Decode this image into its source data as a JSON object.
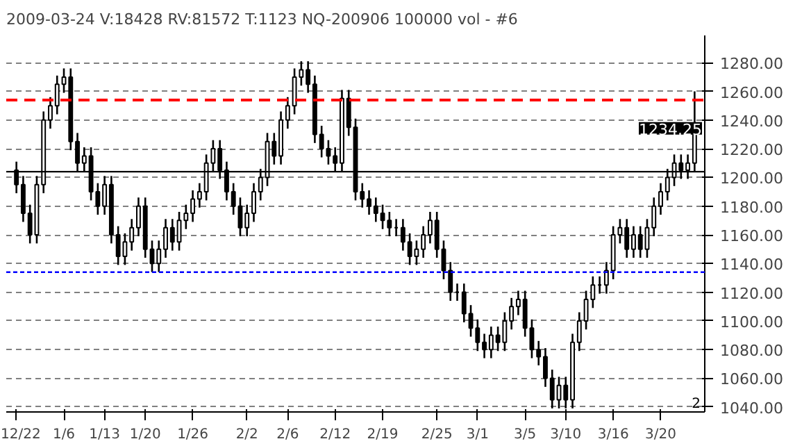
{
  "chart_data": {
    "type": "candlestick",
    "title": "2009-03-24  V:18428  RV:81572  T:1123  NQ-200906  100000 vol - #6",
    "categories": [
      "12/22",
      null,
      null,
      null,
      null,
      null,
      null,
      "1/6",
      null,
      null,
      null,
      null,
      null,
      "1/13",
      null,
      null,
      null,
      null,
      null,
      "1/20",
      null,
      null,
      null,
      null,
      null,
      null,
      "1/26",
      null,
      null,
      null,
      null,
      null,
      null,
      null,
      "2/2",
      null,
      null,
      null,
      null,
      null,
      "2/6",
      null,
      null,
      null,
      null,
      null,
      null,
      "2/12",
      null,
      null,
      null,
      null,
      null,
      null,
      "2/19",
      null,
      null,
      null,
      null,
      null,
      null,
      null,
      "2/25",
      null,
      null,
      null,
      null,
      null,
      "3/1",
      null,
      null,
      null,
      null,
      null,
      null,
      "3/5",
      null,
      null,
      null,
      null,
      null,
      "3/10",
      null,
      null,
      null,
      null,
      null,
      null,
      "3/16",
      null,
      null,
      null,
      null,
      null,
      null,
      "3/20",
      null,
      null,
      null,
      null,
      null
    ],
    "ohlc": [
      [
        1205,
        1211,
        1189,
        1195
      ],
      [
        1195,
        1201,
        1169,
        1175
      ],
      [
        1175,
        1181,
        1154,
        1160
      ],
      [
        1160,
        1201,
        1154,
        1195
      ],
      [
        1195,
        1246,
        1189,
        1240
      ],
      [
        1240,
        1256,
        1234,
        1250
      ],
      [
        1250,
        1271,
        1244,
        1265
      ],
      [
        1265,
        1276,
        1259,
        1270
      ],
      [
        1270,
        1276,
        1219,
        1225
      ],
      [
        1225,
        1231,
        1204,
        1210
      ],
      [
        1210,
        1221,
        1204,
        1215
      ],
      [
        1215,
        1221,
        1184,
        1190
      ],
      [
        1190,
        1196,
        1174,
        1180
      ],
      [
        1180,
        1201,
        1174,
        1195
      ],
      [
        1195,
        1201,
        1154,
        1160
      ],
      [
        1160,
        1166,
        1139,
        1145
      ],
      [
        1145,
        1161,
        1139,
        1155
      ],
      [
        1155,
        1171,
        1149,
        1165
      ],
      [
        1165,
        1186,
        1159,
        1180
      ],
      [
        1180,
        1186,
        1144,
        1150
      ],
      [
        1150,
        1156,
        1134,
        1140
      ],
      [
        1140,
        1156,
        1134,
        1150
      ],
      [
        1150,
        1171,
        1144,
        1165
      ],
      [
        1165,
        1171,
        1149,
        1155
      ],
      [
        1155,
        1176,
        1149,
        1170
      ],
      [
        1170,
        1181,
        1164,
        1175
      ],
      [
        1175,
        1191,
        1169,
        1185
      ],
      [
        1185,
        1196,
        1179,
        1190
      ],
      [
        1190,
        1216,
        1184,
        1210
      ],
      [
        1210,
        1226,
        1204,
        1220
      ],
      [
        1220,
        1226,
        1199,
        1205
      ],
      [
        1205,
        1211,
        1184,
        1190
      ],
      [
        1190,
        1196,
        1174,
        1180
      ],
      [
        1180,
        1186,
        1159,
        1165
      ],
      [
        1165,
        1181,
        1159,
        1175
      ],
      [
        1175,
        1196,
        1169,
        1190
      ],
      [
        1190,
        1206,
        1184,
        1200
      ],
      [
        1200,
        1231,
        1194,
        1225
      ],
      [
        1225,
        1231,
        1209,
        1215
      ],
      [
        1215,
        1246,
        1209,
        1240
      ],
      [
        1240,
        1256,
        1234,
        1250
      ],
      [
        1250,
        1276,
        1244,
        1270
      ],
      [
        1270,
        1281,
        1264,
        1275
      ],
      [
        1275,
        1281,
        1259,
        1265
      ],
      [
        1265,
        1271,
        1224,
        1230
      ],
      [
        1230,
        1236,
        1214,
        1220
      ],
      [
        1220,
        1226,
        1209,
        1215
      ],
      [
        1215,
        1221,
        1204,
        1210
      ],
      [
        1210,
        1261,
        1204,
        1255
      ],
      [
        1255,
        1261,
        1229,
        1235
      ],
      [
        1235,
        1241,
        1184,
        1190
      ],
      [
        1190,
        1196,
        1179,
        1185
      ],
      [
        1185,
        1191,
        1174,
        1180
      ],
      [
        1180,
        1186,
        1169,
        1175
      ],
      [
        1175,
        1181,
        1164,
        1170
      ],
      [
        1170,
        1176,
        1159,
        1165
      ],
      [
        1165,
        1171,
        1159,
        1165
      ],
      [
        1165,
        1171,
        1149,
        1155
      ],
      [
        1155,
        1161,
        1139,
        1145
      ],
      [
        1145,
        1156,
        1139,
        1150
      ],
      [
        1150,
        1166,
        1144,
        1160
      ],
      [
        1160,
        1176,
        1154,
        1170
      ],
      [
        1170,
        1176,
        1144,
        1150
      ],
      [
        1150,
        1156,
        1129,
        1135
      ],
      [
        1135,
        1141,
        1114,
        1120
      ],
      [
        1120,
        1126,
        1114,
        1120
      ],
      [
        1120,
        1126,
        1099,
        1105
      ],
      [
        1105,
        1111,
        1089,
        1095
      ],
      [
        1095,
        1101,
        1079,
        1085
      ],
      [
        1085,
        1091,
        1074,
        1080
      ],
      [
        1080,
        1096,
        1074,
        1090
      ],
      [
        1090,
        1096,
        1079,
        1085
      ],
      [
        1085,
        1106,
        1079,
        1100
      ],
      [
        1100,
        1116,
        1094,
        1110
      ],
      [
        1110,
        1121,
        1104,
        1115
      ],
      [
        1115,
        1121,
        1089,
        1095
      ],
      [
        1095,
        1101,
        1074,
        1080
      ],
      [
        1080,
        1086,
        1069,
        1075
      ],
      [
        1075,
        1081,
        1054,
        1060
      ],
      [
        1060,
        1066,
        1039,
        1045
      ],
      [
        1045,
        1061,
        1039,
        1055
      ],
      [
        1055,
        1061,
        1039,
        1045
      ],
      [
        1045,
        1091,
        1039,
        1085
      ],
      [
        1085,
        1106,
        1079,
        1100
      ],
      [
        1100,
        1121,
        1094,
        1115
      ],
      [
        1115,
        1131,
        1109,
        1125
      ],
      [
        1125,
        1131,
        1119,
        1125
      ],
      [
        1125,
        1141,
        1119,
        1135
      ],
      [
        1135,
        1166,
        1129,
        1160
      ],
      [
        1160,
        1171,
        1154,
        1165
      ],
      [
        1165,
        1171,
        1144,
        1150
      ],
      [
        1150,
        1166,
        1144,
        1160
      ],
      [
        1160,
        1166,
        1144,
        1150
      ],
      [
        1150,
        1171,
        1144,
        1165
      ],
      [
        1165,
        1186,
        1159,
        1180
      ],
      [
        1180,
        1196,
        1174,
        1190
      ],
      [
        1190,
        1206,
        1184,
        1200
      ],
      [
        1200,
        1216,
        1194,
        1210
      ],
      [
        1210,
        1216,
        1199,
        1205
      ],
      [
        1205,
        1216,
        1199,
        1210
      ],
      [
        1210,
        1260,
        1204,
        1234.25
      ]
    ],
    "color": "#000000",
    "ylim": [
      1036.5,
      1299
    ],
    "yticks": [
      {
        "value": 1040,
        "label": "1040.00"
      },
      {
        "value": 1060,
        "label": "1060.00"
      },
      {
        "value": 1080,
        "label": "1080.00"
      },
      {
        "value": 1100,
        "label": "1100.00"
      },
      {
        "value": 1120,
        "label": "1120.00"
      },
      {
        "value": 1140,
        "label": "1140.00"
      },
      {
        "value": 1160,
        "label": "1160.00"
      },
      {
        "value": 1180,
        "label": "1180.00"
      },
      {
        "value": 1200,
        "label": "1200.00"
      },
      {
        "value": 1220,
        "label": "1220.00"
      },
      {
        "value": 1240,
        "label": "1240.00"
      },
      {
        "value": 1260,
        "label": "1260.00"
      },
      {
        "value": 1280,
        "label": "1280.00"
      }
    ],
    "grid": "y",
    "ref_lines": [
      {
        "axis": "y",
        "value": 1254,
        "color": "#ff0000",
        "line_style": "dashed"
      },
      {
        "axis": "y",
        "value": 1134,
        "color": "#0000ff",
        "line_style": "dotted"
      },
      {
        "axis": "y",
        "value": 1204,
        "color": "#000000",
        "line_style": "solid"
      }
    ],
    "annotations": [
      "1234.25",
      "2"
    ]
  }
}
